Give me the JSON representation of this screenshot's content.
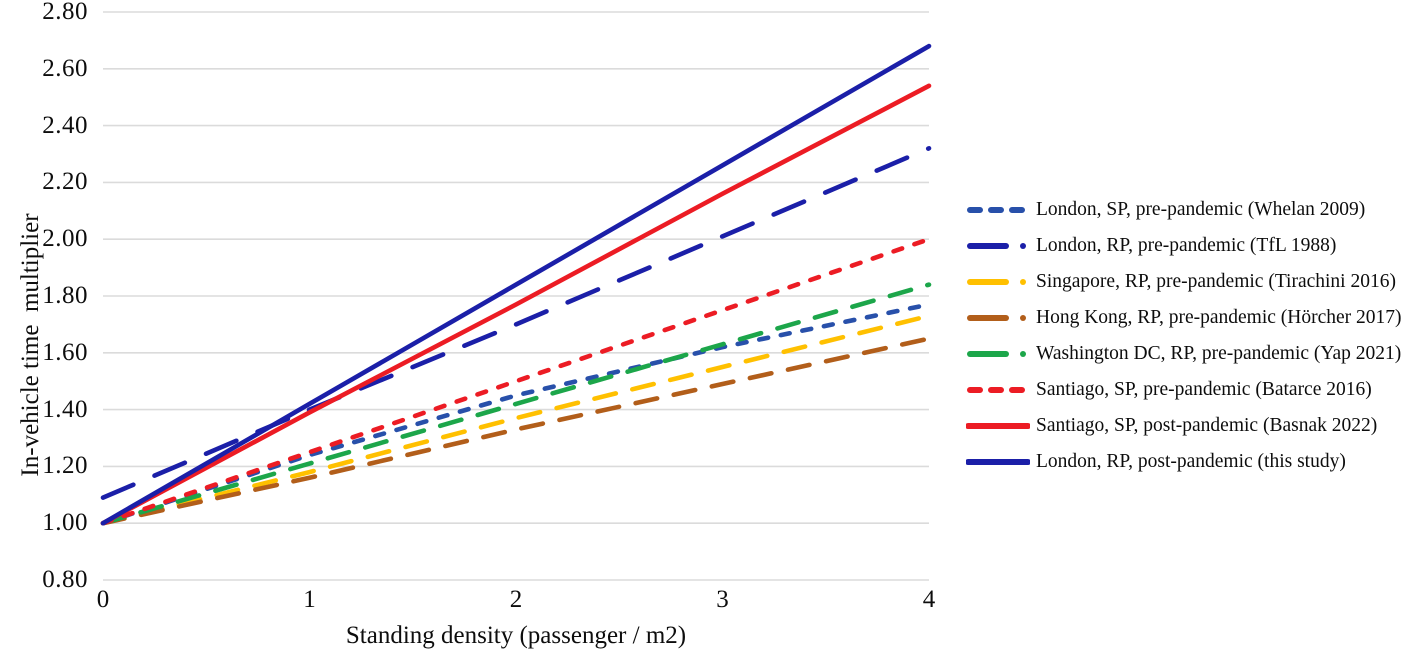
{
  "chart_data": {
    "type": "line",
    "xlabel": "Standing density (passenger / m2)",
    "ylabel": "In-vehicle time  multiplier",
    "x": [
      0,
      1,
      2,
      3,
      4
    ],
    "x_ticks": [
      "0",
      "1",
      "2",
      "3",
      "4"
    ],
    "y_ticks": [
      "0.80",
      "1.00",
      "1.20",
      "1.40",
      "1.60",
      "1.80",
      "2.00",
      "2.20",
      "2.40",
      "2.60",
      "2.80"
    ],
    "xlim": [
      0,
      4
    ],
    "ylim": [
      0.8,
      2.8
    ],
    "grid": "horizontal gridlines only",
    "gridline_color": "#DBDBDB",
    "legend_position": "right",
    "series": [
      {
        "name": "London, SP, pre-pandemic (Whelan 2009)",
        "color": "#2850AA",
        "line_style": "dashed",
        "legend_marker": "dashes",
        "values": [
          1.0,
          1.24,
          1.45,
          1.62,
          1.77
        ]
      },
      {
        "name": "London, RP, pre-pandemic (TfL 1988)",
        "color": "#1B1FA8",
        "line_style": "long-dash-xl",
        "legend_marker": "dash-dot",
        "values": [
          1.09,
          1.4,
          1.7,
          2.01,
          2.32
        ]
      },
      {
        "name": "Singapore, RP, pre-pandemic (Tirachini 2016)",
        "color": "#FFC000",
        "line_style": "long-dash",
        "legend_marker": "dash-dot",
        "values": [
          1.0,
          1.18,
          1.37,
          1.55,
          1.73
        ]
      },
      {
        "name": "Hong Kong, RP, pre-pandemic (Hörcher 2017)",
        "color": "#B25E1A",
        "line_style": "long-dash",
        "legend_marker": "dash-dot",
        "values": [
          1.0,
          1.16,
          1.33,
          1.49,
          1.65
        ]
      },
      {
        "name": "Washington DC, RP, pre-pandemic (Yap 2021)",
        "color": "#1CA64A",
        "line_style": "long-dash",
        "legend_marker": "dash-dot",
        "values": [
          1.0,
          1.21,
          1.42,
          1.63,
          1.84
        ]
      },
      {
        "name": "Santiago, SP, pre-pandemic (Batarce 2016)",
        "color": "#EC1C24",
        "line_style": "dashed",
        "legend_marker": "dashes",
        "values": [
          1.0,
          1.25,
          1.5,
          1.75,
          2.0
        ]
      },
      {
        "name": "Santiago, SP, post-pandemic (Basnak 2022)",
        "color": "#EC1C24",
        "line_style": "solid",
        "legend_marker": "solid",
        "values": [
          1.0,
          1.39,
          1.77,
          2.16,
          2.54
        ]
      },
      {
        "name": "London, RP, post-pandemic (this study)",
        "color": "#1B1FA8",
        "line_style": "solid",
        "legend_marker": "solid",
        "values": [
          1.0,
          1.42,
          1.84,
          2.26,
          2.68
        ]
      }
    ]
  }
}
